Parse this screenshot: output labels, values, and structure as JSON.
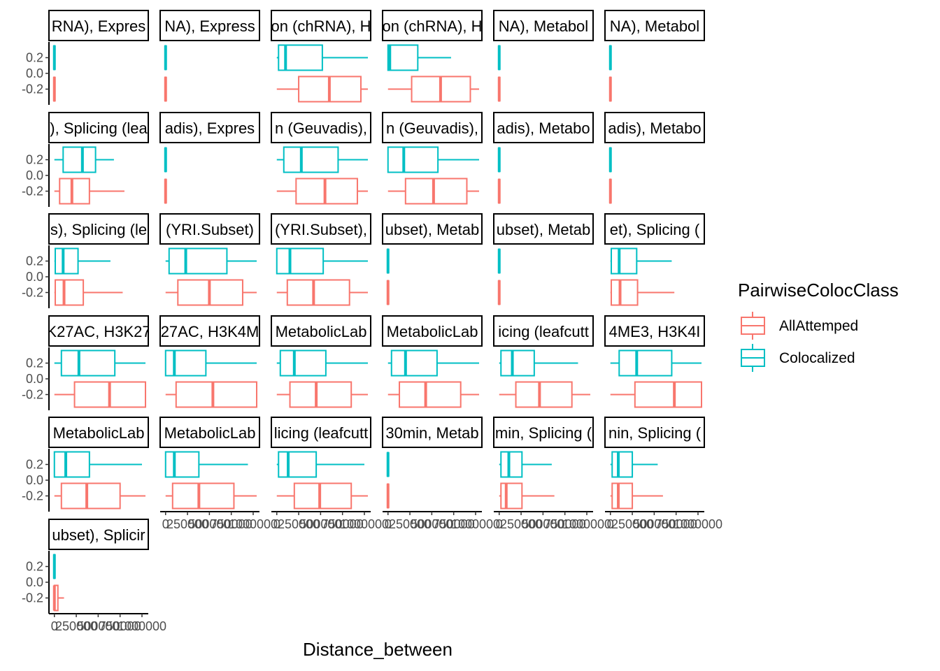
{
  "chart_data": {
    "type": "boxplot-facets",
    "xlabel": "Distance_between",
    "ylabel": "",
    "x_ticks": [
      0,
      250000,
      500000,
      750000,
      1000000
    ],
    "x_tick_labels": [
      "0",
      "250000",
      "500000",
      "750000",
      "1000000"
    ],
    "xlim": [
      -30000,
      1040000
    ],
    "y_ticks": [
      0.2,
      0.0,
      -0.2
    ],
    "y_tick_labels": [
      "0.2",
      "0.0",
      "-0.2"
    ],
    "ylim": [
      -0.4,
      0.4
    ],
    "legend": {
      "title": "PairwiseColocClass",
      "placement": "right",
      "entries": [
        {
          "name": "AllAttemped",
          "color": "#F8766D"
        },
        {
          "name": "Colocalized",
          "color": "#00BFC4"
        }
      ]
    },
    "series_colors": {
      "AllAttemped": "#F8766D",
      "Colocalized": "#00BFC4"
    },
    "facets": [
      {
        "strip": "RNA), Expres",
        "boxes": [
          {
            "class": "Colocalized",
            "y": 0.2,
            "stats": [
              0,
              0,
              0,
              0,
              0
            ]
          },
          {
            "class": "AllAttemped",
            "y": -0.2,
            "stats": [
              0,
              0,
              0,
              0,
              0
            ]
          }
        ]
      },
      {
        "strip": "NA), Express",
        "boxes": [
          {
            "class": "Colocalized",
            "y": 0.2,
            "stats": [
              0,
              0,
              0,
              0,
              0
            ]
          },
          {
            "class": "AllAttemped",
            "y": -0.2,
            "stats": [
              0,
              0,
              0,
              0,
              0
            ]
          }
        ]
      },
      {
        "strip": "on (chRNA), H",
        "boxes": [
          {
            "class": "Colocalized",
            "y": 0.2,
            "stats": [
              0,
              20000,
              100000,
              520000,
              1040000
            ]
          },
          {
            "class": "AllAttemped",
            "y": -0.2,
            "stats": [
              0,
              250000,
              600000,
              960000,
              1040000
            ]
          }
        ]
      },
      {
        "strip": "on (chRNA), H",
        "boxes": [
          {
            "class": "Colocalized",
            "y": 0.2,
            "stats": [
              0,
              0,
              20000,
              340000,
              720000
            ]
          },
          {
            "class": "AllAttemped",
            "y": -0.2,
            "stats": [
              0,
              270000,
              600000,
              940000,
              1040000
            ]
          }
        ]
      },
      {
        "strip": "NA), Metabol",
        "boxes": [
          {
            "class": "Colocalized",
            "y": 0.2,
            "stats": [
              0,
              0,
              0,
              0,
              0
            ]
          },
          {
            "class": "AllAttemped",
            "y": -0.2,
            "stats": [
              0,
              0,
              0,
              0,
              0
            ]
          }
        ]
      },
      {
        "strip": "NA), Metabol",
        "boxes": [
          {
            "class": "Colocalized",
            "y": 0.2,
            "stats": [
              0,
              0,
              0,
              0,
              0
            ]
          },
          {
            "class": "AllAttemped",
            "y": -0.2,
            "stats": [
              0,
              0,
              0,
              0,
              0
            ]
          }
        ]
      },
      {
        "strip": "), Splicing (lea",
        "boxes": [
          {
            "class": "Colocalized",
            "y": 0.2,
            "stats": [
              0,
              100000,
              320000,
              470000,
              680000
            ]
          },
          {
            "class": "AllAttemped",
            "y": -0.2,
            "stats": [
              0,
              60000,
              200000,
              400000,
              800000
            ]
          }
        ]
      },
      {
        "strip": "adis), Expres",
        "boxes": [
          {
            "class": "Colocalized",
            "y": 0.2,
            "stats": [
              0,
              0,
              0,
              0,
              0
            ]
          },
          {
            "class": "AllAttemped",
            "y": -0.2,
            "stats": [
              0,
              0,
              0,
              0,
              0
            ]
          }
        ]
      },
      {
        "strip": "n (Geuvadis),",
        "boxes": [
          {
            "class": "Colocalized",
            "y": 0.2,
            "stats": [
              0,
              80000,
              280000,
              700000,
              1040000
            ]
          },
          {
            "class": "AllAttemped",
            "y": -0.2,
            "stats": [
              0,
              220000,
              550000,
              920000,
              1040000
            ]
          }
        ]
      },
      {
        "strip": "n (Geuvadis),",
        "boxes": [
          {
            "class": "Colocalized",
            "y": 0.2,
            "stats": [
              0,
              0,
              180000,
              570000,
              1040000
            ]
          },
          {
            "class": "AllAttemped",
            "y": -0.2,
            "stats": [
              0,
              200000,
              520000,
              900000,
              1040000
            ]
          }
        ]
      },
      {
        "strip": "adis), Metabo",
        "boxes": [
          {
            "class": "Colocalized",
            "y": 0.2,
            "stats": [
              0,
              0,
              0,
              0,
              0
            ]
          },
          {
            "class": "AllAttemped",
            "y": -0.2,
            "stats": [
              0,
              0,
              0,
              0,
              0
            ]
          }
        ]
      },
      {
        "strip": "adis), Metabo",
        "boxes": [
          {
            "class": "Colocalized",
            "y": 0.2,
            "stats": [
              0,
              0,
              0,
              0,
              0
            ]
          },
          {
            "class": "AllAttemped",
            "y": -0.2,
            "stats": [
              0,
              0,
              0,
              0,
              0
            ]
          }
        ]
      },
      {
        "strip": "s), Splicing (le",
        "boxes": [
          {
            "class": "Colocalized",
            "y": 0.2,
            "stats": [
              0,
              10000,
              100000,
              270000,
              640000
            ]
          },
          {
            "class": "AllAttemped",
            "y": -0.2,
            "stats": [
              0,
              10000,
              110000,
              330000,
              780000
            ]
          }
        ]
      },
      {
        "strip": "(YRI.Subset)",
        "boxes": [
          {
            "class": "Colocalized",
            "y": 0.2,
            "stats": [
              0,
              40000,
              230000,
              700000,
              1040000
            ]
          },
          {
            "class": "AllAttemped",
            "y": -0.2,
            "stats": [
              0,
              140000,
              500000,
              880000,
              1040000
            ]
          }
        ]
      },
      {
        "strip": "(YRI.Subset),",
        "boxes": [
          {
            "class": "Colocalized",
            "y": 0.2,
            "stats": [
              0,
              0,
              150000,
              530000,
              1040000
            ]
          },
          {
            "class": "AllAttemped",
            "y": -0.2,
            "stats": [
              0,
              120000,
              420000,
              830000,
              1040000
            ]
          }
        ]
      },
      {
        "strip": "ubset), Metab",
        "boxes": [
          {
            "class": "Colocalized",
            "y": 0.2,
            "stats": [
              0,
              0,
              0,
              0,
              0
            ]
          },
          {
            "class": "AllAttemped",
            "y": -0.2,
            "stats": [
              0,
              0,
              0,
              0,
              0
            ]
          }
        ]
      },
      {
        "strip": "ubset), Metab",
        "boxes": [
          {
            "class": "Colocalized",
            "y": 0.2,
            "stats": [
              0,
              0,
              0,
              0,
              0
            ]
          },
          {
            "class": "AllAttemped",
            "y": -0.2,
            "stats": [
              0,
              0,
              0,
              0,
              0
            ]
          }
        ]
      },
      {
        "strip": "et), Splicing (",
        "boxes": [
          {
            "class": "Colocalized",
            "y": 0.2,
            "stats": [
              0,
              10000,
              100000,
              300000,
              700000
            ]
          },
          {
            "class": "AllAttemped",
            "y": -0.2,
            "stats": [
              0,
              10000,
              110000,
              310000,
              730000
            ]
          }
        ]
      },
      {
        "strip": "K27AC, H3K27",
        "boxes": [
          {
            "class": "Colocalized",
            "y": 0.2,
            "stats": [
              0,
              80000,
              280000,
              690000,
              1040000
            ]
          },
          {
            "class": "AllAttemped",
            "y": -0.2,
            "stats": [
              0,
              230000,
              630000,
              1040000,
              1040000
            ]
          }
        ]
      },
      {
        "strip": "27AC, H3K4M",
        "boxes": [
          {
            "class": "Colocalized",
            "y": 0.2,
            "stats": [
              0,
              0,
              100000,
              460000,
              1040000
            ]
          },
          {
            "class": "AllAttemped",
            "y": -0.2,
            "stats": [
              0,
              120000,
              540000,
              1040000,
              1040000
            ]
          }
        ]
      },
      {
        "strip": "MetabolicLab",
        "boxes": [
          {
            "class": "Colocalized",
            "y": 0.2,
            "stats": [
              0,
              40000,
              200000,
              560000,
              1040000
            ]
          },
          {
            "class": "AllAttemped",
            "y": -0.2,
            "stats": [
              0,
              150000,
              450000,
              850000,
              1040000
            ]
          }
        ]
      },
      {
        "strip": "MetabolicLab",
        "boxes": [
          {
            "class": "Colocalized",
            "y": 0.2,
            "stats": [
              0,
              40000,
              200000,
              560000,
              1040000
            ]
          },
          {
            "class": "AllAttemped",
            "y": -0.2,
            "stats": [
              0,
              130000,
              430000,
              830000,
              1040000
            ]
          }
        ]
      },
      {
        "strip": "icing (leafcutt",
        "boxes": [
          {
            "class": "Colocalized",
            "y": 0.2,
            "stats": [
              0,
              20000,
              150000,
              400000,
              900000
            ]
          },
          {
            "class": "AllAttemped",
            "y": -0.2,
            "stats": [
              0,
              190000,
              460000,
              830000,
              1040000
            ]
          }
        ]
      },
      {
        "strip": "4ME3, H3K4I",
        "boxes": [
          {
            "class": "Colocalized",
            "y": 0.2,
            "stats": [
              0,
              100000,
              300000,
              700000,
              1040000
            ]
          },
          {
            "class": "AllAttemped",
            "y": -0.2,
            "stats": [
              0,
              280000,
              730000,
              1040000,
              1040000
            ]
          }
        ]
      },
      {
        "strip": "MetabolicLab",
        "boxes": [
          {
            "class": "Colocalized",
            "y": 0.2,
            "stats": [
              0,
              0,
              130000,
              400000,
              1000000
            ]
          },
          {
            "class": "AllAttemped",
            "y": -0.2,
            "stats": [
              0,
              80000,
              370000,
              750000,
              1040000
            ]
          }
        ]
      },
      {
        "strip": "MetabolicLab",
        "boxes": [
          {
            "class": "Colocalized",
            "y": 0.2,
            "stats": [
              0,
              0,
              100000,
              380000,
              940000
            ]
          },
          {
            "class": "AllAttemped",
            "y": -0.2,
            "stats": [
              0,
              80000,
              380000,
              780000,
              1040000
            ]
          }
        ]
      },
      {
        "strip": "licing (leafcutt",
        "boxes": [
          {
            "class": "Colocalized",
            "y": 0.2,
            "stats": [
              0,
              20000,
              130000,
              450000,
              1000000
            ]
          },
          {
            "class": "AllAttemped",
            "y": -0.2,
            "stats": [
              0,
              200000,
              490000,
              850000,
              1040000
            ]
          }
        ]
      },
      {
        "strip": "30min, Metab",
        "boxes": [
          {
            "class": "Colocalized",
            "y": 0.2,
            "stats": [
              0,
              0,
              0,
              0,
              0
            ]
          },
          {
            "class": "AllAttemped",
            "y": -0.2,
            "stats": [
              0,
              0,
              0,
              0,
              0
            ]
          }
        ]
      },
      {
        "strip": "min, Splicing (",
        "boxes": [
          {
            "class": "Colocalized",
            "y": 0.2,
            "stats": [
              0,
              20000,
              110000,
              260000,
              600000
            ]
          },
          {
            "class": "AllAttemped",
            "y": -0.2,
            "stats": [
              0,
              20000,
              80000,
              260000,
              630000
            ]
          }
        ]
      },
      {
        "strip": "nin, Splicing (",
        "boxes": [
          {
            "class": "Colocalized",
            "y": 0.2,
            "stats": [
              0,
              20000,
              90000,
              250000,
              540000
            ]
          },
          {
            "class": "AllAttemped",
            "y": -0.2,
            "stats": [
              0,
              20000,
              90000,
              250000,
              600000
            ]
          }
        ]
      },
      {
        "strip": "ubset), Splicir",
        "boxes": [
          {
            "class": "Colocalized",
            "y": 0.2,
            "stats": [
              0,
              0,
              0,
              0,
              0
            ]
          },
          {
            "class": "AllAttemped",
            "y": -0.2,
            "stats": [
              0,
              0,
              0,
              40000,
              110000
            ]
          }
        ]
      }
    ],
    "grid": false
  }
}
